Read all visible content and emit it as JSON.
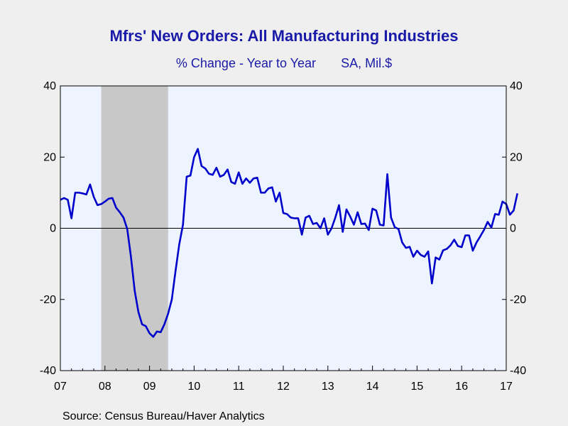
{
  "chart_data": {
    "type": "line",
    "title": "Mfrs' New Orders: All Manufacturing Industries",
    "subtitle": "% Change - Year to Year",
    "units": "SA, Mil.$",
    "source": "Source:  Census Bureau/Haver Analytics",
    "ylim": [
      -40,
      40
    ],
    "yticks": [
      -40,
      -20,
      0,
      20,
      40
    ],
    "x_start_year": 2007,
    "x_end_year": 2017,
    "xtick_labels": [
      "07",
      "08",
      "09",
      "10",
      "11",
      "12",
      "13",
      "14",
      "15",
      "16",
      "17"
    ],
    "recession": {
      "start": "2007-12",
      "end": "2009-06"
    },
    "colors": {
      "line": "#0000cc",
      "plot_background": "#eef4ff",
      "recession_shade": "#c8c8c8",
      "zero_line": "#000000"
    },
    "series": [
      {
        "x_start": "2007-01",
        "frequency": "monthly",
        "values": [
          8.0,
          8.5,
          8.0,
          2.8,
          10.0,
          10.0,
          9.8,
          9.5,
          12.3,
          8.8,
          6.5,
          6.8,
          7.5,
          8.3,
          8.5,
          5.8,
          4.5,
          3.0,
          -0.2,
          -8.0,
          -17.5,
          -23.5,
          -27.0,
          -27.5,
          -29.5,
          -30.5,
          -29.0,
          -29.2,
          -27.0,
          -24.0,
          -20.0,
          -12.0,
          -4.5,
          1.0,
          14.5,
          14.8,
          20.0,
          22.3,
          17.5,
          16.8,
          15.3,
          15.0,
          17.0,
          14.5,
          15.0,
          16.5,
          13.0,
          12.5,
          15.7,
          12.5,
          14.0,
          12.8,
          14.0,
          14.2,
          10.0,
          10.0,
          11.2,
          11.5,
          7.5,
          10.0,
          4.3,
          4.0,
          3.0,
          2.8,
          2.8,
          -1.8,
          3.0,
          3.5,
          1.2,
          1.5,
          0.0,
          2.8,
          -1.8,
          0.0,
          3.0,
          6.5,
          -1.0,
          5.3,
          3.3,
          1.0,
          4.5,
          1.2,
          1.3,
          -0.5,
          5.5,
          5.0,
          1.0,
          0.8,
          15.2,
          3.0,
          0.3,
          -0.2,
          -4.0,
          -5.5,
          -5.2,
          -8.0,
          -6.3,
          -7.5,
          -8.0,
          -6.5,
          -15.5,
          -8.2,
          -8.8,
          -6.2,
          -5.8,
          -4.8,
          -3.2,
          -5.0,
          -5.3,
          -2.0,
          -2.0,
          -6.3,
          -4.0,
          -2.3,
          -0.5,
          1.8,
          0.2,
          4.0,
          3.8,
          7.5,
          6.8,
          3.8,
          5.0,
          9.8
        ]
      }
    ]
  }
}
